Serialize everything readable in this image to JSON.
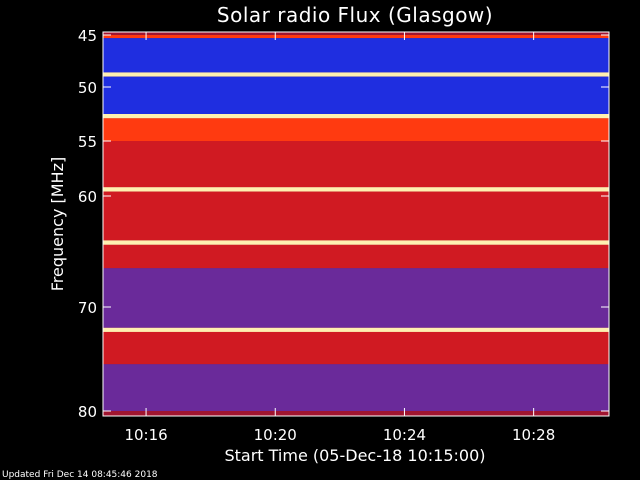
{
  "chart_data": {
    "type": "heatmap",
    "title": "Solar radio Flux (Glasgow)",
    "xlabel": "Start Time (05-Dec-18 10:15:00)",
    "ylabel": "Frequency [MHz]",
    "x_unit": "time (HH:MM)",
    "xlim": [
      "10:14:40",
      "10:30:20"
    ],
    "ylim": [
      45,
      80
    ],
    "y_inverted": true,
    "x_ticks": [
      "10:16",
      "10:20",
      "10:24",
      "10:28"
    ],
    "y_ticks": [
      45,
      50,
      55,
      60,
      70,
      80
    ],
    "color_scale": [
      "#000033",
      "#1a1ae6",
      "#7a1aa0",
      "#c8102e",
      "#ff3010",
      "#ff8c1a",
      "#fff0a0"
    ],
    "frequency_bands": [
      {
        "from": 45.0,
        "to": 45.3,
        "level": "high"
      },
      {
        "from": 45.3,
        "to": 48.6,
        "level": "low"
      },
      {
        "from": 48.6,
        "to": 49.0,
        "level": "peak"
      },
      {
        "from": 49.0,
        "to": 52.5,
        "level": "low"
      },
      {
        "from": 52.5,
        "to": 52.9,
        "level": "peak"
      },
      {
        "from": 52.9,
        "to": 55.0,
        "level": "high"
      },
      {
        "from": 55.0,
        "to": 59.2,
        "level": "medium"
      },
      {
        "from": 59.2,
        "to": 59.6,
        "level": "peak"
      },
      {
        "from": 59.6,
        "to": 64.0,
        "level": "medium"
      },
      {
        "from": 64.0,
        "to": 64.4,
        "level": "peak"
      },
      {
        "from": 64.4,
        "to": 66.5,
        "level": "medium"
      },
      {
        "from": 66.5,
        "to": 72.0,
        "level": "low-medium"
      },
      {
        "from": 72.0,
        "to": 72.4,
        "level": "peak"
      },
      {
        "from": 72.4,
        "to": 75.5,
        "level": "medium"
      },
      {
        "from": 75.5,
        "to": 80.0,
        "level": "low-medium"
      }
    ],
    "grid": false
  },
  "footer": {
    "updated": "Updated Fri Dec 14 08:45:46 2018"
  }
}
